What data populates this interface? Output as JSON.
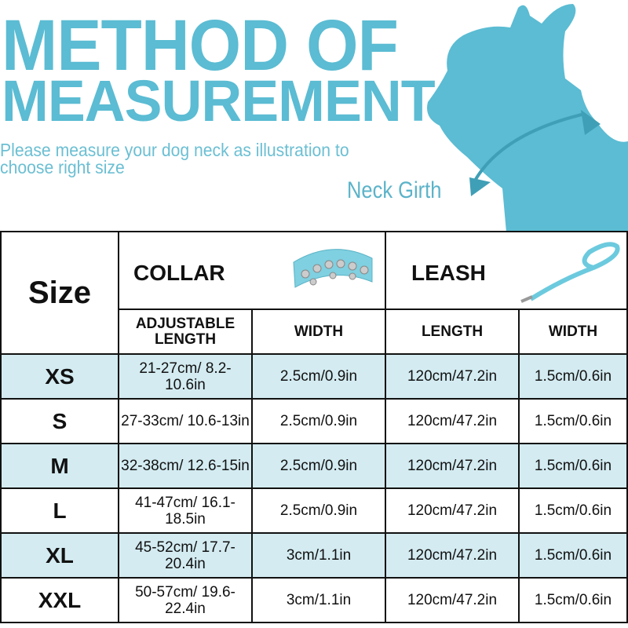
{
  "header": {
    "title_line1": "METHOD OF",
    "title_line2": "MEASUREMENT",
    "instruction": "Please measure your dog neck as illustration to choose right size",
    "neck_label": "Neck Girth"
  },
  "colors": {
    "accent": "#5bbcd3",
    "row_highlight": "#d3ebf1"
  },
  "table": {
    "size_header": "Size",
    "collar_header": "COLLAR",
    "leash_header": "LEASH",
    "columns": [
      "ADJUSTABLE LENGTH",
      "WIDTH",
      "LENGTH",
      "WIDTH"
    ],
    "rows": [
      {
        "size": "XS",
        "length": "21-27cm/ 8.2-10.6in",
        "collar_width": "2.5cm/0.9in",
        "leash_length": "120cm/47.2in",
        "leash_width": "1.5cm/0.6in"
      },
      {
        "size": "S",
        "length": "27-33cm/ 10.6-13in",
        "collar_width": "2.5cm/0.9in",
        "leash_length": "120cm/47.2in",
        "leash_width": "1.5cm/0.6in"
      },
      {
        "size": "M",
        "length": "32-38cm/ 12.6-15in",
        "collar_width": "2.5cm/0.9in",
        "leash_length": "120cm/47.2in",
        "leash_width": "1.5cm/0.6in"
      },
      {
        "size": "L",
        "length": "41-47cm/ 16.1-18.5in",
        "collar_width": "2.5cm/0.9in",
        "leash_length": "120cm/47.2in",
        "leash_width": "1.5cm/0.6in"
      },
      {
        "size": "XL",
        "length": "45-52cm/ 17.7-20.4in",
        "collar_width": "3cm/1.1in",
        "leash_length": "120cm/47.2in",
        "leash_width": "1.5cm/0.6in"
      },
      {
        "size": "XXL",
        "length": "50-57cm/ 19.6-22.4in",
        "collar_width": "3cm/1.1in",
        "leash_length": "120cm/47.2in",
        "leash_width": "1.5cm/0.6in"
      }
    ]
  }
}
